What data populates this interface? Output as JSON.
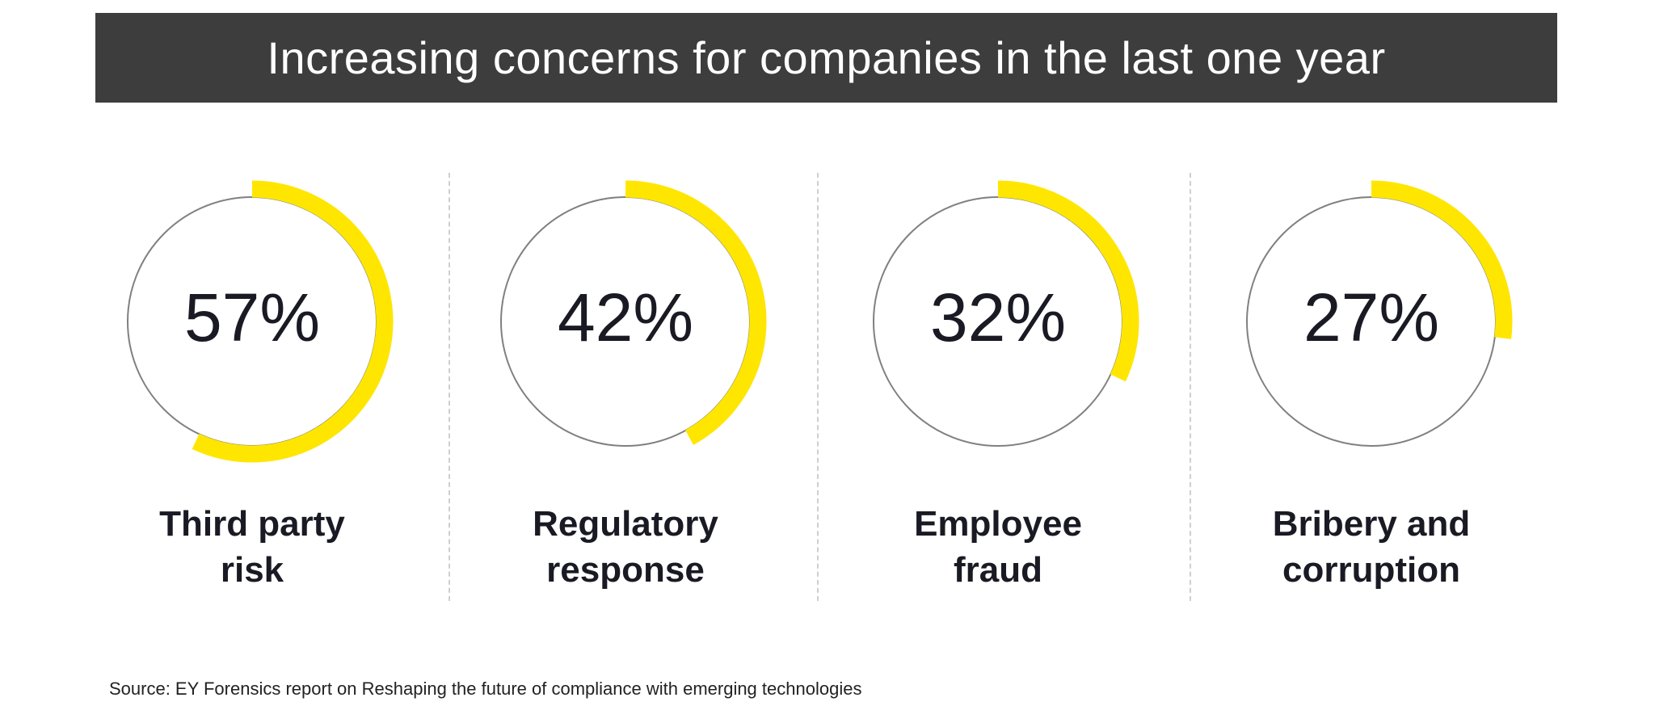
{
  "header": {
    "title": "Increasing concerns for companies in the last one year"
  },
  "colors": {
    "accent": "#FFE600",
    "track": "#808080",
    "header_bg": "#3d3d3d"
  },
  "chart_data": {
    "type": "pie",
    "title": "Increasing concerns for companies in the last one year",
    "items": [
      {
        "label_line1": "Third party",
        "label_line2": "risk",
        "value": 57,
        "display": "57%"
      },
      {
        "label_line1": "Regulatory",
        "label_line2": "response",
        "value": 42,
        "display": "42%"
      },
      {
        "label_line1": "Employee",
        "label_line2": "fraud",
        "value": 32,
        "display": "32%"
      },
      {
        "label_line1": "Bribery and",
        "label_line2": "corruption",
        "value": 27,
        "display": "27%"
      }
    ]
  },
  "footer": {
    "source": "Source: EY Forensics report on Reshaping the future of compliance with emerging technologies"
  }
}
